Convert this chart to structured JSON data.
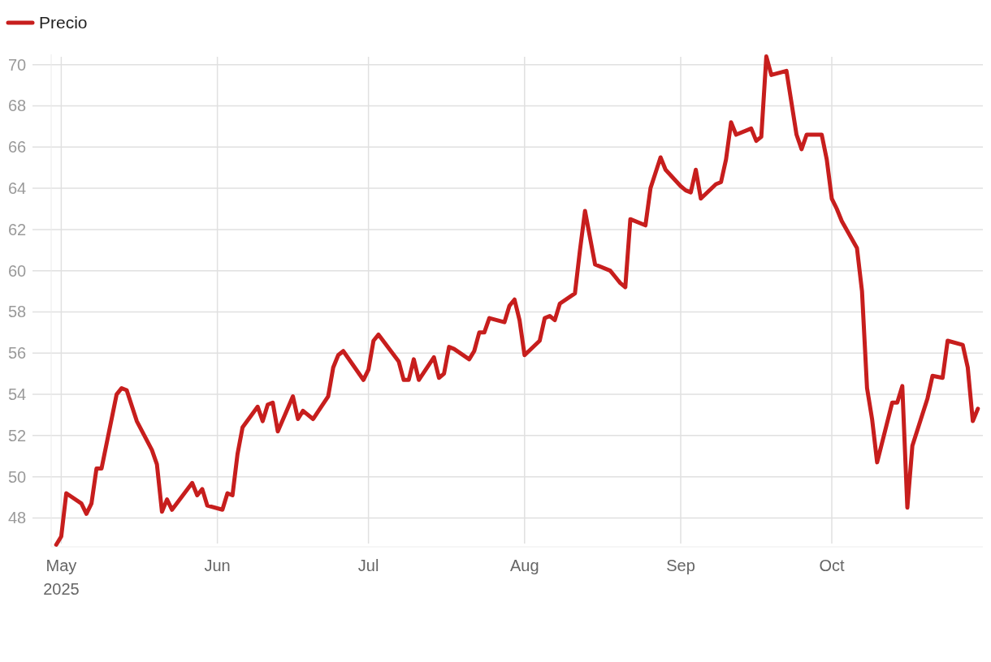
{
  "chart_data": {
    "type": "line",
    "legend": "top left",
    "grid": true,
    "line_style": "solid",
    "marker": "none",
    "xlim": [
      "2025-04-29",
      "2025-10-31"
    ],
    "xticks": [
      {
        "value": "2025-05-01",
        "label": "May\n2025"
      },
      {
        "value": "2025-06-01",
        "label": "Jun"
      },
      {
        "value": "2025-07-01",
        "label": "Jul"
      },
      {
        "value": "2025-08-01",
        "label": "Aug"
      },
      {
        "value": "2025-09-01",
        "label": "Sep"
      },
      {
        "value": "2025-10-01",
        "label": "Oct"
      }
    ],
    "ylim": [
      46.6,
      70.5
    ],
    "yticks": [
      48,
      50,
      52,
      54,
      56,
      58,
      60,
      62,
      64,
      66,
      68,
      70
    ],
    "x": [
      "2025-04-30",
      "2025-05-01",
      "2025-05-02",
      "2025-05-05",
      "2025-05-06",
      "2025-05-07",
      "2025-05-08",
      "2025-05-09",
      "2025-05-12",
      "2025-05-13",
      "2025-05-14",
      "2025-05-16",
      "2025-05-19",
      "2025-05-20",
      "2025-05-21",
      "2025-05-22",
      "2025-05-23",
      "2025-05-27",
      "2025-05-28",
      "2025-05-29",
      "2025-05-30",
      "2025-06-02",
      "2025-06-03",
      "2025-06-04",
      "2025-06-05",
      "2025-06-06",
      "2025-06-09",
      "2025-06-10",
      "2025-06-11",
      "2025-06-12",
      "2025-06-13",
      "2025-06-16",
      "2025-06-17",
      "2025-06-18",
      "2025-06-20",
      "2025-06-23",
      "2025-06-24",
      "2025-06-25",
      "2025-06-26",
      "2025-06-30",
      "2025-07-01",
      "2025-07-02",
      "2025-07-03",
      "2025-07-07",
      "2025-07-08",
      "2025-07-09",
      "2025-07-10",
      "2025-07-11",
      "2025-07-14",
      "2025-07-15",
      "2025-07-16",
      "2025-07-17",
      "2025-07-18",
      "2025-07-21",
      "2025-07-22",
      "2025-07-23",
      "2025-07-24",
      "2025-07-25",
      "2025-07-28",
      "2025-07-29",
      "2025-07-30",
      "2025-07-31",
      "2025-08-01",
      "2025-08-04",
      "2025-08-05",
      "2025-08-06",
      "2025-08-07",
      "2025-08-08",
      "2025-08-11",
      "2025-08-12",
      "2025-08-13",
      "2025-08-15",
      "2025-08-18",
      "2025-08-19",
      "2025-08-20",
      "2025-08-21",
      "2025-08-22",
      "2025-08-25",
      "2025-08-26",
      "2025-08-28",
      "2025-08-29",
      "2025-09-01",
      "2025-09-02",
      "2025-09-03",
      "2025-09-04",
      "2025-09-05",
      "2025-09-08",
      "2025-09-09",
      "2025-09-10",
      "2025-09-11",
      "2025-09-12",
      "2025-09-15",
      "2025-09-16",
      "2025-09-17",
      "2025-09-18",
      "2025-09-19",
      "2025-09-22",
      "2025-09-24",
      "2025-09-25",
      "2025-09-26",
      "2025-09-29",
      "2025-09-30",
      "2025-10-01",
      "2025-10-02",
      "2025-10-03",
      "2025-10-06",
      "2025-10-07",
      "2025-10-08",
      "2025-10-09",
      "2025-10-10",
      "2025-10-13",
      "2025-10-14",
      "2025-10-15",
      "2025-10-16",
      "2025-10-17",
      "2025-10-20",
      "2025-10-21",
      "2025-10-23",
      "2025-10-24",
      "2025-10-27",
      "2025-10-28",
      "2025-10-29",
      "2025-10-30"
    ],
    "series": [
      {
        "name": "Precio",
        "color": "#c71e1d",
        "values": [
          46.7,
          47.1,
          49.2,
          48.7,
          48.2,
          48.7,
          50.4,
          50.4,
          54.0,
          54.3,
          54.2,
          52.7,
          51.3,
          50.6,
          48.3,
          48.9,
          48.4,
          49.7,
          49.1,
          49.4,
          48.6,
          48.4,
          49.2,
          49.1,
          51.1,
          52.4,
          53.4,
          52.7,
          53.5,
          53.6,
          52.2,
          53.9,
          52.8,
          53.2,
          52.8,
          53.9,
          55.3,
          55.9,
          56.1,
          54.7,
          55.2,
          56.6,
          56.9,
          55.6,
          54.7,
          54.7,
          55.7,
          54.7,
          55.8,
          54.8,
          55.0,
          56.3,
          56.2,
          55.7,
          56.1,
          57.0,
          57.0,
          57.7,
          57.5,
          58.3,
          58.6,
          57.6,
          55.9,
          56.6,
          57.7,
          57.8,
          57.6,
          58.4,
          58.9,
          61.0,
          62.9,
          60.3,
          60.0,
          59.7,
          59.4,
          59.2,
          62.5,
          62.2,
          64.0,
          65.5,
          64.9,
          64.1,
          63.9,
          63.8,
          64.9,
          63.5,
          64.2,
          64.3,
          65.4,
          67.2,
          66.6,
          66.9,
          66.3,
          66.5,
          70.4,
          69.5,
          69.7,
          66.6,
          65.9,
          66.6,
          66.6,
          65.4,
          63.5,
          63.0,
          62.4,
          61.1,
          59.0,
          54.3,
          52.8,
          50.7,
          53.6,
          53.6,
          54.4,
          48.5,
          51.5,
          53.8,
          54.9,
          54.8,
          56.6,
          56.4,
          55.3,
          52.7,
          53.3
        ]
      }
    ]
  }
}
